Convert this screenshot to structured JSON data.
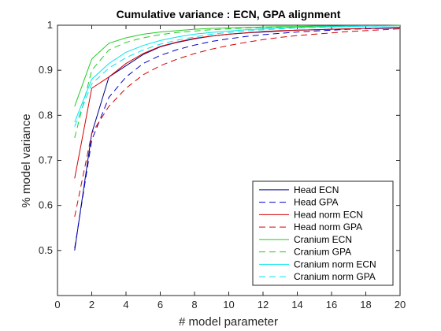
{
  "chart_data": {
    "type": "line",
    "title": "Cumulative variance : ECN, GPA  alignment",
    "xlabel": "# model parameter",
    "ylabel": "% model variance",
    "xlim": [
      0,
      20
    ],
    "ylim": [
      0.4,
      1.0
    ],
    "xticks": [
      0,
      2,
      4,
      6,
      8,
      10,
      12,
      14,
      16,
      18,
      20
    ],
    "yticks": [
      0.5,
      0.6,
      0.7,
      0.8,
      0.9,
      1
    ],
    "ytick_labels": [
      "0.5",
      "0.6",
      "0.7",
      "0.8",
      "0.9",
      "1"
    ],
    "grid": false,
    "legend_position": "lower-right",
    "series": [
      {
        "name": "Head ECN",
        "color": "#00008b",
        "dash": "solid",
        "x": [
          1,
          2,
          3,
          4,
          5,
          6,
          7,
          8,
          9,
          10,
          11,
          12,
          13,
          14,
          15,
          16,
          17,
          18,
          19,
          20
        ],
        "y": [
          0.5,
          0.76,
          0.885,
          0.91,
          0.935,
          0.952,
          0.962,
          0.97,
          0.976,
          0.98,
          0.983,
          0.985,
          0.987,
          0.989,
          0.99,
          0.991,
          0.992,
          0.993,
          0.993,
          0.994
        ]
      },
      {
        "name": "Head GPA",
        "color": "#0000cd",
        "dash": "dashed",
        "x": [
          1,
          2,
          3,
          4,
          5,
          6,
          7,
          8,
          9,
          10,
          11,
          12,
          13,
          14,
          15,
          16,
          17,
          18,
          19,
          20
        ],
        "y": [
          0.505,
          0.745,
          0.84,
          0.885,
          0.915,
          0.933,
          0.946,
          0.956,
          0.964,
          0.97,
          0.975,
          0.979,
          0.982,
          0.985,
          0.987,
          0.989,
          0.991,
          0.992,
          0.993,
          0.994
        ]
      },
      {
        "name": "Head norm ECN",
        "color": "#d40000",
        "dash": "solid",
        "x": [
          1,
          2,
          3,
          4,
          5,
          6,
          7,
          8,
          9,
          10,
          11,
          12,
          13,
          14,
          15,
          16,
          17,
          18,
          19,
          20
        ],
        "y": [
          0.66,
          0.86,
          0.885,
          0.915,
          0.937,
          0.953,
          0.963,
          0.971,
          0.976,
          0.98,
          0.983,
          0.986,
          0.988,
          0.989,
          0.99,
          0.991,
          0.992,
          0.993,
          0.994,
          0.995
        ]
      },
      {
        "name": "Head norm GPA",
        "color": "#d40000",
        "dash": "dashed",
        "x": [
          1,
          2,
          3,
          4,
          5,
          6,
          7,
          8,
          9,
          10,
          11,
          12,
          13,
          14,
          15,
          16,
          17,
          18,
          19,
          20
        ],
        "y": [
          0.575,
          0.76,
          0.82,
          0.86,
          0.89,
          0.91,
          0.925,
          0.937,
          0.947,
          0.955,
          0.962,
          0.968,
          0.973,
          0.977,
          0.98,
          0.983,
          0.986,
          0.988,
          0.99,
          0.992
        ]
      },
      {
        "name": "Cranium ECN",
        "color": "#22cc22",
        "dash": "solid",
        "x": [
          1,
          2,
          3,
          4,
          5,
          6,
          7,
          8,
          9,
          10,
          11,
          12,
          13,
          14,
          15,
          16,
          17,
          18,
          19,
          20
        ],
        "y": [
          0.82,
          0.925,
          0.96,
          0.972,
          0.98,
          0.985,
          0.988,
          0.991,
          0.993,
          0.994,
          0.995,
          0.996,
          0.997,
          0.997,
          0.998,
          0.998,
          0.999,
          0.999,
          0.999,
          1.0
        ]
      },
      {
        "name": "Cranium GPA",
        "color": "#22cc22",
        "dash": "dashed",
        "x": [
          1,
          2,
          3,
          4,
          5,
          6,
          7,
          8,
          9,
          10,
          11,
          12,
          13,
          14,
          15,
          16,
          17,
          18,
          19,
          20
        ],
        "y": [
          0.75,
          0.9,
          0.945,
          0.962,
          0.972,
          0.979,
          0.984,
          0.987,
          0.99,
          0.992,
          0.994,
          0.995,
          0.996,
          0.997,
          0.997,
          0.998,
          0.998,
          0.999,
          0.999,
          0.999
        ]
      },
      {
        "name": "Cranium norm ECN",
        "color": "#00e5ee",
        "dash": "solid",
        "x": [
          1,
          2,
          3,
          4,
          5,
          6,
          7,
          8,
          9,
          10,
          11,
          12,
          13,
          14,
          15,
          16,
          17,
          18,
          19,
          20
        ],
        "y": [
          0.785,
          0.88,
          0.915,
          0.94,
          0.955,
          0.966,
          0.974,
          0.98,
          0.984,
          0.987,
          0.99,
          0.992,
          0.994,
          0.995,
          0.996,
          0.997,
          0.997,
          0.998,
          0.998,
          0.999
        ]
      },
      {
        "name": "Cranium norm GPA",
        "color": "#00e5ee",
        "dash": "dashed",
        "x": [
          1,
          2,
          3,
          4,
          5,
          6,
          7,
          8,
          9,
          10,
          11,
          12,
          13,
          14,
          15,
          16,
          17,
          18,
          19,
          20
        ],
        "y": [
          0.775,
          0.87,
          0.905,
          0.928,
          0.945,
          0.958,
          0.967,
          0.974,
          0.98,
          0.984,
          0.987,
          0.99,
          0.992,
          0.994,
          0.995,
          0.996,
          0.997,
          0.998,
          0.998,
          0.999
        ]
      }
    ]
  }
}
